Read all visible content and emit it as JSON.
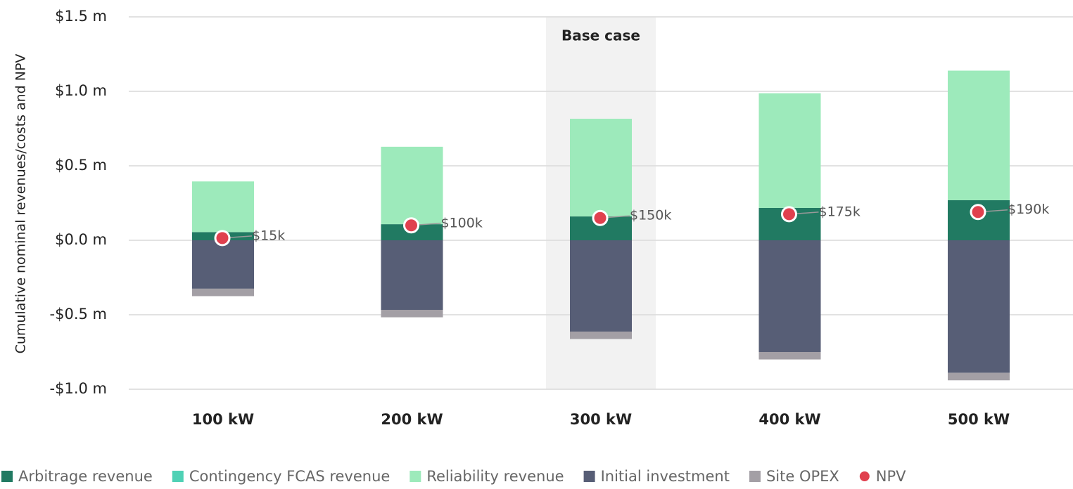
{
  "chart_data": {
    "type": "bar",
    "stacked": true,
    "y_axis_label": "Cumulative nominal revenues/costs and NPV",
    "annotation": "Base case",
    "highlight_category": 2,
    "categories": [
      "100 kW",
      "200 kW",
      "300 kW",
      "400 kW",
      "500 kW"
    ],
    "series": [
      {
        "name": "Arbitrage revenue",
        "color": "#217a62",
        "values": [
          0.055,
          0.108,
          0.16,
          0.217,
          0.269
        ]
      },
      {
        "name": "Contingency FCAS revenue",
        "color": "#4fd1b5",
        "values": [
          0,
          0,
          0,
          0,
          0
        ]
      },
      {
        "name": "Reliability revenue",
        "color": "#9deabb",
        "values": [
          0.34,
          0.52,
          0.656,
          0.77,
          0.87
        ]
      },
      {
        "name": "Initial investment",
        "color": "#575e76",
        "values": [
          -0.325,
          -0.467,
          -0.613,
          -0.75,
          -0.89
        ]
      },
      {
        "name": "Site OPEX",
        "color": "#a39fa5",
        "values": [
          -0.05,
          -0.05,
          -0.05,
          -0.05,
          -0.05
        ]
      }
    ],
    "npv": {
      "name": "NPV",
      "color": "#e0404e",
      "values": [
        0.015,
        0.1,
        0.15,
        0.175,
        0.19
      ],
      "value_labels": [
        "$15k",
        "$100k",
        "$150k",
        "$175k",
        "$190k"
      ]
    },
    "ylim": [
      -1.0,
      1.5
    ],
    "yticks": [
      {
        "value": -1.0,
        "label": "-$1.0 m"
      },
      {
        "value": -0.5,
        "label": "-$0.5 m"
      },
      {
        "value": 0,
        "label": "$0.0 m"
      },
      {
        "value": 0.5,
        "label": "$0.5 m"
      },
      {
        "value": 1.0,
        "label": "$1.0 m"
      },
      {
        "value": 1.5,
        "label": "$1.5 m"
      }
    ],
    "grid": true
  }
}
